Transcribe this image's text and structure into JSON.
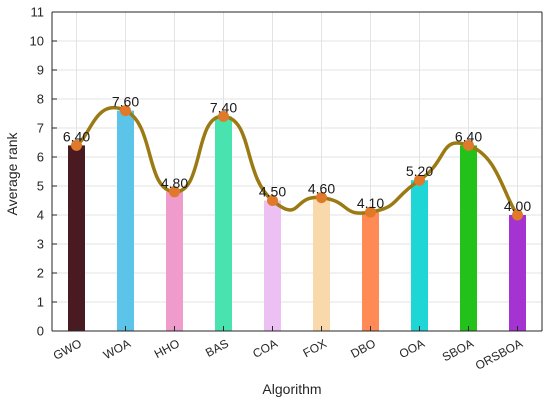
{
  "chart_data": {
    "type": "bar",
    "xlabel": "Algorithm",
    "ylabel": "Average rank",
    "categories": [
      "GWO",
      "WOA",
      "HHO",
      "BAS",
      "COA",
      "FOX",
      "DBO",
      "OOA",
      "SBOA",
      "ORSBOA"
    ],
    "values": [
      6.4,
      7.6,
      4.8,
      7.4,
      4.5,
      4.6,
      4.1,
      5.2,
      6.4,
      4.0
    ],
    "value_labels": [
      "6.40",
      "7.60",
      "4.80",
      "7.40",
      "4.50",
      "4.60",
      "4.10",
      "5.20",
      "6.40",
      "4.00"
    ],
    "bar_colors": [
      "#4a1a22",
      "#5bc4e8",
      "#ef9ccd",
      "#49e3b0",
      "#ecc0f2",
      "#f9d9ab",
      "#ff8a55",
      "#1fd6d6",
      "#22c21a",
      "#a533d1"
    ],
    "ylim": [
      0,
      11
    ],
    "yticks": [
      "0",
      "1",
      "2",
      "3",
      "4",
      "5",
      "6",
      "7",
      "8",
      "9",
      "10",
      "11"
    ],
    "grid": true,
    "overlay": {
      "type": "smooth-line",
      "line_color": "#9b7a14",
      "marker_color": "#e07a2a"
    }
  }
}
